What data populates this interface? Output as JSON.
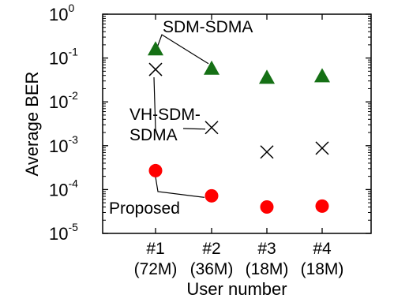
{
  "chart_data": {
    "type": "scatter",
    "title": "",
    "xlabel": "User number",
    "ylabel": "Average BER",
    "yscale": "log",
    "ylim": [
      1e-05,
      1
    ],
    "grid": false,
    "legend": "none",
    "categories": [
      {
        "line1": "#1",
        "line2": "(72M)"
      },
      {
        "line1": "#2",
        "line2": "(36M)"
      },
      {
        "line1": "#3",
        "line2": "(18M)"
      },
      {
        "line1": "#4",
        "line2": "(18M)"
      }
    ],
    "y_ticks": [
      {
        "base": "10",
        "exp": "0",
        "value": 1
      },
      {
        "base": "10",
        "exp": "-1",
        "value": 0.1
      },
      {
        "base": "10",
        "exp": "-2",
        "value": 0.01
      },
      {
        "base": "10",
        "exp": "-3",
        "value": 0.001
      },
      {
        "base": "10",
        "exp": "-4",
        "value": 0.0001
      },
      {
        "base": "10",
        "exp": "-5",
        "value": 1e-05
      }
    ],
    "series": [
      {
        "name": "SDM-SDMA",
        "marker": "triangle",
        "color": "#157015",
        "values": [
          0.16,
          0.058,
          0.036,
          0.039
        ]
      },
      {
        "name": "VH-SDM-SDMA",
        "marker": "x",
        "color": "#000000",
        "values": [
          0.055,
          0.0026,
          0.00072,
          0.00088
        ]
      },
      {
        "name": "Proposed",
        "marker": "circle",
        "color": "#ff0000",
        "values": [
          0.00027,
          7.2e-05,
          4e-05,
          4.2e-05
        ]
      }
    ],
    "annotations": [
      {
        "series": "SDM-SDMA",
        "label": "SDM-SDMA"
      },
      {
        "series": "VH-SDM-SDMA",
        "line1": "VH-SDM-",
        "line2": "SDMA"
      },
      {
        "series": "Proposed",
        "label": "Proposed"
      }
    ]
  }
}
